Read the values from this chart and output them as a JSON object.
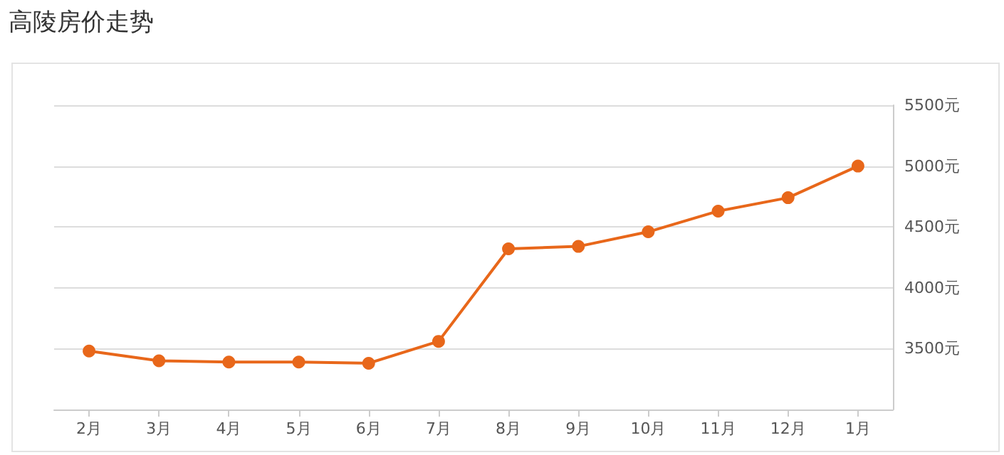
{
  "chart_data": {
    "type": "line",
    "title": "高陵房价走势",
    "categories": [
      "2月",
      "3月",
      "4月",
      "5月",
      "6月",
      "7月",
      "8月",
      "9月",
      "10月",
      "11月",
      "12月",
      "1月"
    ],
    "series": [
      {
        "color": "#e8671a",
        "values": [
          3480,
          3400,
          3390,
          3390,
          3380,
          3560,
          4320,
          4340,
          4460,
          4630,
          4740,
          5000
        ]
      }
    ],
    "ylim": [
      3000,
      5500
    ],
    "yticks": [
      {
        "value": 3500,
        "label": "3500元"
      },
      {
        "value": 4000,
        "label": "4000元"
      },
      {
        "value": 4500,
        "label": "4500元"
      },
      {
        "value": 5000,
        "label": "5000元"
      },
      {
        "value": 5500,
        "label": "5500元"
      }
    ],
    "grid": "y",
    "marker": "circle",
    "line_style": "solid"
  }
}
